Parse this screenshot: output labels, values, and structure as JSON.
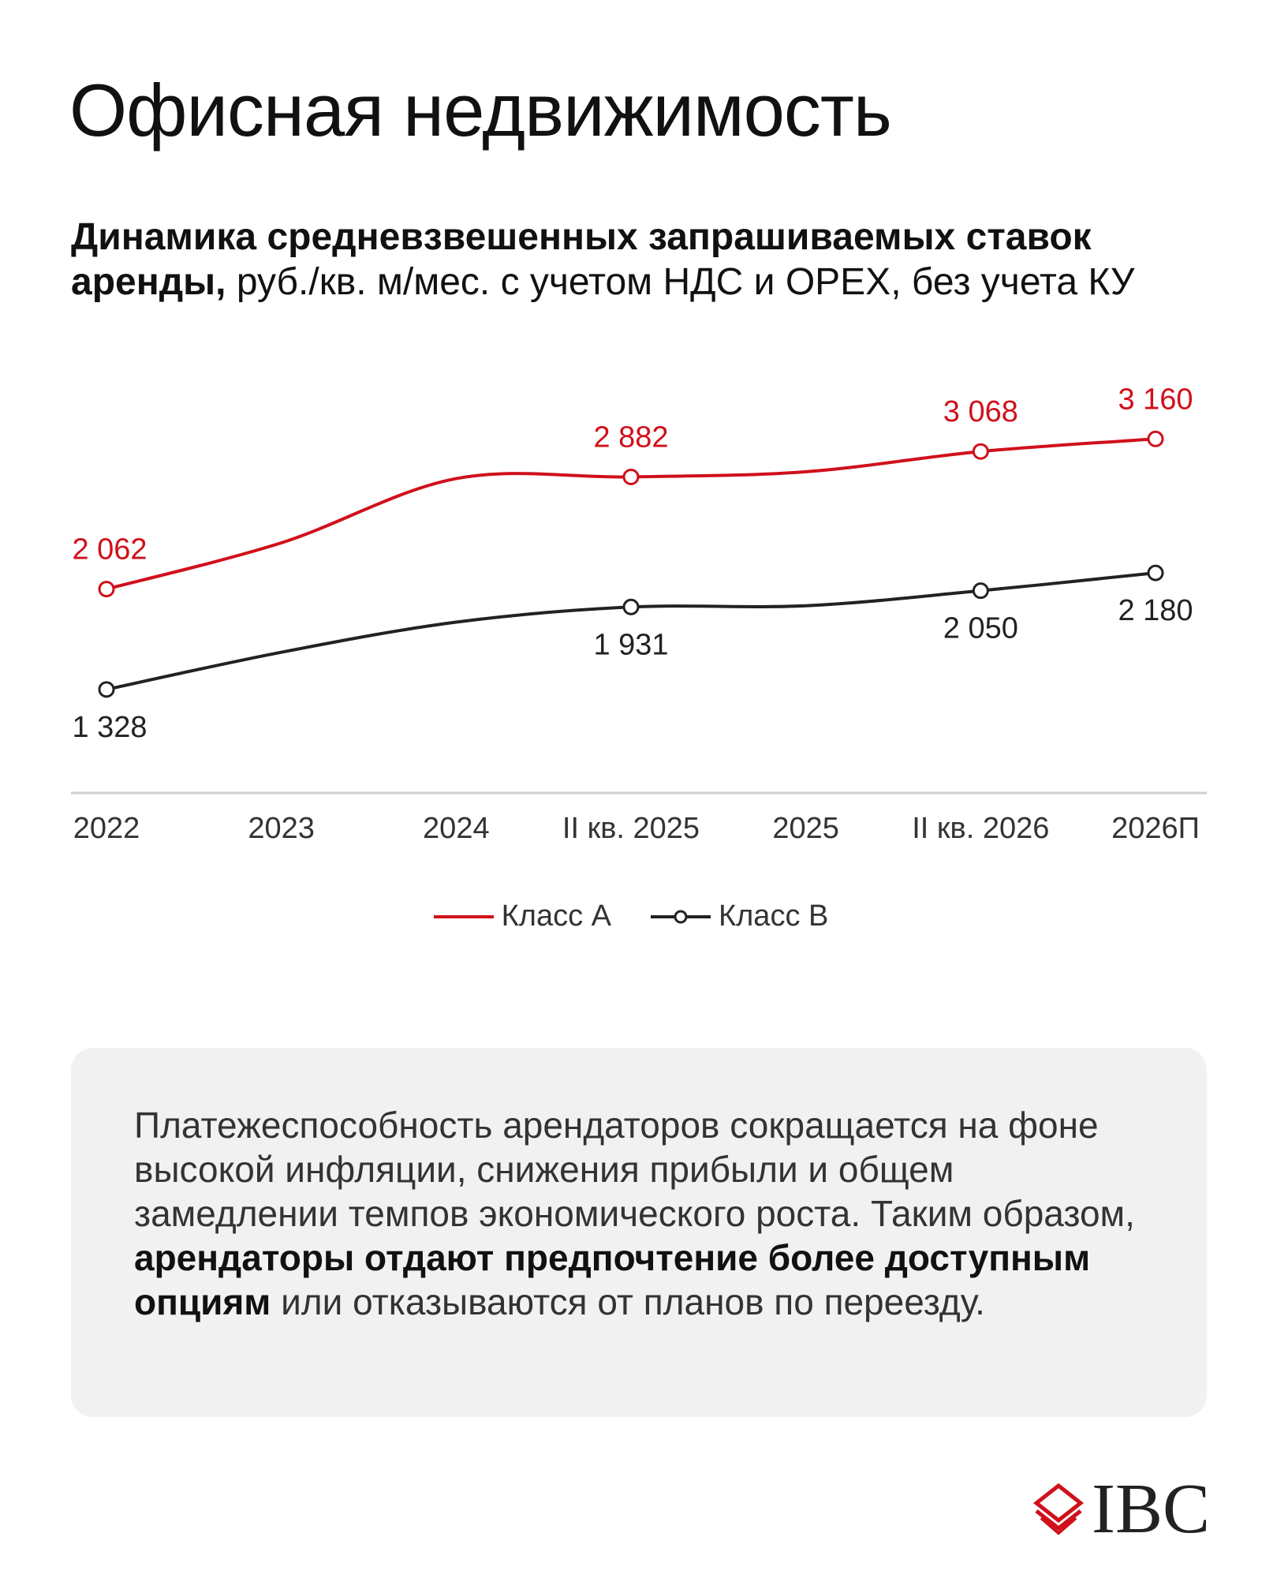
{
  "title": "Офисная недвижимость",
  "subtitle": {
    "bold": "Динамика средневзвешенных запрашиваемых ставок аренды,",
    "normal": " руб./кв. м/мес. с учетом НДС и OPEX, без учета КУ"
  },
  "colors": {
    "class_a": "#d0101b",
    "class_b": "#222222"
  },
  "chart_data": {
    "type": "line",
    "categories": [
      "2022",
      "2023",
      "2024",
      "II кв. 2025",
      "2025",
      "II кв. 2026",
      "2026П"
    ],
    "series": [
      {
        "name": "Класс А",
        "values": [
          2062,
          2400,
          2870,
          2882,
          2920,
          3068,
          3160
        ],
        "labels": [
          "2 062",
          "",
          "",
          "2 882",
          "",
          "3 068",
          "3 160"
        ]
      },
      {
        "name": "Класс В",
        "values": [
          1328,
          1600,
          1820,
          1931,
          1940,
          2050,
          2180
        ],
        "labels": [
          "1 328",
          "",
          "",
          "1 931",
          "",
          "2 050",
          "2 180"
        ]
      }
    ],
    "ylim": [
      600,
      3600
    ],
    "grid": false,
    "legend": "bottom-center"
  },
  "note": {
    "part1": "Платежеспособность арендаторов сокращается на фоне высокой инфляции, снижения прибыли и общем замедлении темпов экономического роста. Таким образом, ",
    "bold": "арендаторы отдают предпочтение более доступным опциям",
    "part2": " или отказываются от планов по переезду."
  },
  "logo": {
    "text": "IBC",
    "icon": "ibc-diamond-logo-icon"
  }
}
